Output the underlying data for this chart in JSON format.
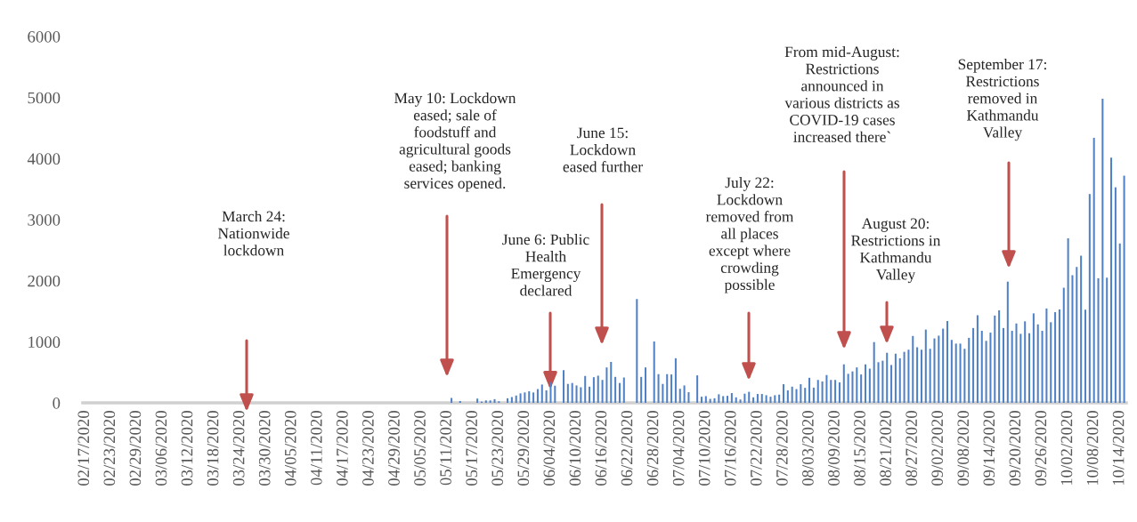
{
  "chart_data": {
    "type": "bar",
    "categories": [
      "02/17/2020",
      null,
      null,
      null,
      null,
      null,
      "02/23/2020",
      null,
      null,
      null,
      null,
      null,
      "02/29/2020",
      null,
      null,
      null,
      null,
      null,
      "03/06/2020",
      null,
      null,
      null,
      null,
      null,
      "03/12/2020",
      null,
      null,
      null,
      null,
      null,
      "03/18/2020",
      null,
      null,
      null,
      null,
      null,
      "03/24/2020",
      null,
      null,
      null,
      null,
      null,
      "03/30/2020",
      null,
      null,
      null,
      null,
      null,
      "04/05/2020",
      null,
      null,
      null,
      null,
      null,
      "04/11/2020",
      null,
      null,
      null,
      null,
      null,
      "04/17/2020",
      null,
      null,
      null,
      null,
      null,
      "04/23/2020",
      null,
      null,
      null,
      null,
      null,
      "04/29/2020",
      null,
      null,
      null,
      null,
      null,
      "05/05/2020",
      null,
      null,
      null,
      null,
      null,
      "05/11/2020",
      null,
      null,
      null,
      null,
      null,
      "05/17/2020",
      null,
      null,
      null,
      null,
      null,
      "05/23/2020",
      null,
      null,
      null,
      null,
      null,
      "05/29/2020",
      null,
      null,
      null,
      null,
      null,
      "06/04/2020",
      null,
      null,
      null,
      null,
      null,
      "06/10/2020",
      null,
      null,
      null,
      null,
      null,
      "06/16/2020",
      null,
      null,
      null,
      null,
      null,
      "06/22/2020",
      null,
      null,
      null,
      null,
      null,
      "06/28/2020",
      null,
      null,
      null,
      null,
      null,
      "07/04/2020",
      null,
      null,
      null,
      null,
      null,
      "07/10/2020",
      null,
      null,
      null,
      null,
      null,
      "07/16/2020",
      null,
      null,
      null,
      null,
      null,
      "07/22/2020",
      null,
      null,
      null,
      null,
      null,
      "07/28/2020",
      null,
      null,
      null,
      null,
      null,
      "08/03/2020",
      null,
      null,
      null,
      null,
      null,
      "08/09/2020",
      null,
      null,
      null,
      null,
      null,
      "08/15/2020",
      null,
      null,
      null,
      null,
      null,
      "08/21/2020",
      null,
      null,
      null,
      null,
      null,
      "08/27/2020",
      null,
      null,
      null,
      null,
      null,
      "09/02/2020",
      null,
      null,
      null,
      null,
      null,
      "09/08/2020",
      null,
      null,
      null,
      null,
      null,
      "09/14/2020",
      null,
      null,
      null,
      null,
      null,
      "09/20/2020",
      null,
      null,
      null,
      null,
      null,
      "09/26/2020",
      null,
      null,
      null,
      null,
      null,
      "10/02/2020",
      null,
      null,
      null,
      null,
      null,
      "10/08/2020",
      null,
      null,
      null,
      null,
      null,
      "10/14/2020",
      null
    ],
    "values": [
      0,
      0,
      0,
      0,
      0,
      0,
      0,
      0,
      0,
      0,
      0,
      0,
      0,
      0,
      0,
      0,
      0,
      0,
      0,
      0,
      0,
      0,
      0,
      0,
      0,
      0,
      0,
      0,
      0,
      0,
      0,
      0,
      0,
      0,
      0,
      0,
      0,
      0,
      0,
      0,
      0,
      0,
      0,
      0,
      0,
      0,
      0,
      0,
      0,
      0,
      0,
      0,
      0,
      0,
      0,
      0,
      0,
      0,
      0,
      0,
      0,
      0,
      0,
      0,
      0,
      0,
      0,
      0,
      0,
      0,
      0,
      0,
      0,
      0,
      0,
      0,
      0,
      0,
      0,
      0,
      0,
      0,
      0,
      0,
      0,
      80,
      0,
      30,
      0,
      0,
      0,
      70,
      20,
      40,
      40,
      60,
      25,
      0,
      75,
      95,
      120,
      155,
      170,
      190,
      170,
      225,
      300,
      205,
      340,
      280,
      0,
      535,
      310,
      325,
      285,
      255,
      440,
      265,
      420,
      445,
      375,
      580,
      670,
      425,
      325,
      415,
      0,
      0,
      1700,
      425,
      580,
      0,
      1005,
      470,
      310,
      470,
      465,
      730,
      230,
      285,
      175,
      0,
      450,
      100,
      110,
      65,
      75,
      140,
      110,
      115,
      160,
      90,
      55,
      150,
      180,
      90,
      145,
      145,
      125,
      100,
      125,
      135,
      305,
      205,
      265,
      225,
      305,
      245,
      410,
      250,
      375,
      350,
      455,
      375,
      375,
      335,
      630,
      475,
      515,
      580,
      465,
      630,
      560,
      995,
      665,
      690,
      820,
      620,
      805,
      730,
      835,
      870,
      1095,
      910,
      870,
      1200,
      885,
      1055,
      1100,
      1215,
      1340,
      1030,
      970,
      970,
      885,
      1065,
      1225,
      1435,
      1180,
      1015,
      1150,
      1430,
      1515,
      1225,
      1985,
      1180,
      1300,
      1130,
      1335,
      1140,
      1465,
      1285,
      1180,
      1545,
      1320,
      1485,
      1530,
      1885,
      2695,
      2090,
      2225,
      2410,
      1525,
      3420,
      4340,
      2040,
      4980,
      2050,
      4015,
      3530,
      2610,
      3720
    ],
    "color": "#4f81c7",
    "ylim": [
      0,
      6000
    ],
    "yticks": [
      0,
      1000,
      2000,
      3000,
      4000,
      5000,
      6000
    ],
    "annotations": [
      "March 24:\nNationwide\nlockdown",
      "May 10: Lockdown\neased; sale of\nfoodstuff and\nagricultural goods\neased; banking\nservices opened.",
      {
        "text": "June 6: Public\nHealth\nEmergency\ndeclared",
        "y": 220
      },
      "June 15:\nLockdown\neased further",
      "July 22:\nLockdown\nremoved from\nall places\nexcept where\ncrowding\npossible",
      "From mid-August:\nRestrictions\nannounced in\nvarious districts as\nCOVID-19 cases\nincreased there`",
      "August 20:\nRestrictions in\nKathmandu\nValley",
      "September 17:\nRestrictions\nremoved in\nKathmandu\nValley"
    ]
  }
}
